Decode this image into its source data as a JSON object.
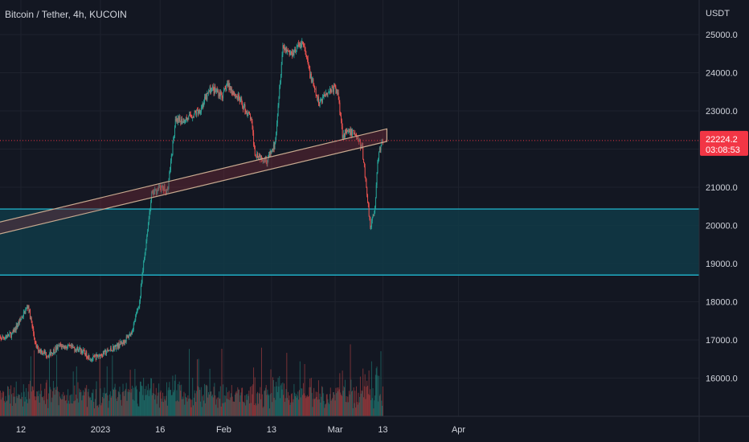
{
  "chart_data": {
    "type": "candlestick",
    "title": "Bitcoin / Tether, 4h, KUCOIN",
    "currency_label": "USDT",
    "ylim": [
      15400,
      26000
    ],
    "y_ticks": [
      "16000.0",
      "17000.0",
      "18000.0",
      "19000.0",
      "20000.0",
      "21000.0",
      "22000.0",
      "23000.0",
      "24000.0",
      "25000.0"
    ],
    "x_ticks": [
      {
        "label": "12",
        "date": "2022-12-12"
      },
      {
        "label": "2023",
        "date": "2023-01-01"
      },
      {
        "label": "16",
        "date": "2023-01-16"
      },
      {
        "label": "Feb",
        "date": "2023-02-01"
      },
      {
        "label": "13",
        "date": "2023-02-13"
      },
      {
        "label": "Mar",
        "date": "2023-03-01"
      },
      {
        "label": "13",
        "date": "2023-03-13"
      },
      {
        "label": "Apr",
        "date": "2023-04-01"
      }
    ],
    "price_path": [
      [
        "2022-12-06",
        17000
      ],
      [
        "2022-12-10",
        17150
      ],
      [
        "2022-12-14",
        17900
      ],
      [
        "2022-12-16",
        16800
      ],
      [
        "2022-12-19",
        16600
      ],
      [
        "2022-12-22",
        16850
      ],
      [
        "2022-12-27",
        16750
      ],
      [
        "2022-12-30",
        16500
      ],
      [
        "2023-01-03",
        16700
      ],
      [
        "2023-01-07",
        16950
      ],
      [
        "2023-01-09",
        17200
      ],
      [
        "2023-01-11",
        18000
      ],
      [
        "2023-01-12",
        19000
      ],
      [
        "2023-01-14",
        20800
      ],
      [
        "2023-01-16",
        21000
      ],
      [
        "2023-01-18",
        20900
      ],
      [
        "2023-01-20",
        22700
      ],
      [
        "2023-01-23",
        22800
      ],
      [
        "2023-01-26",
        23000
      ],
      [
        "2023-01-29",
        23600
      ],
      [
        "2023-02-01",
        23400
      ],
      [
        "2023-02-02",
        23700
      ],
      [
        "2023-02-05",
        23300
      ],
      [
        "2023-02-08",
        22800
      ],
      [
        "2023-02-09",
        21900
      ],
      [
        "2023-02-12",
        21700
      ],
      [
        "2023-02-14",
        22100
      ],
      [
        "2023-02-16",
        24700
      ],
      [
        "2023-02-18",
        24500
      ],
      [
        "2023-02-21",
        24800
      ],
      [
        "2023-02-23",
        23900
      ],
      [
        "2023-02-25",
        23200
      ],
      [
        "2023-02-27",
        23500
      ],
      [
        "2023-03-01",
        23600
      ],
      [
        "2023-03-02",
        23400
      ],
      [
        "2023-03-03",
        22400
      ],
      [
        "2023-03-06",
        22450
      ],
      [
        "2023-03-08",
        22000
      ],
      [
        "2023-03-09",
        21000
      ],
      [
        "2023-03-10",
        20000
      ],
      [
        "2023-03-11",
        20300
      ],
      [
        "2023-03-12",
        21800
      ],
      [
        "2023-03-13",
        22224.2
      ]
    ],
    "support_zone": {
      "upper": 20430,
      "lower": 18700
    },
    "trend_channel": [
      {
        "date": "2022-12-06",
        "upper": 20070,
        "lower": 19760
      },
      {
        "date": "2023-03-14",
        "upper": 22530,
        "lower": 22200
      }
    ],
    "last_price": {
      "value": "22224.2",
      "countdown": "03:08:53"
    },
    "colors": {
      "up": "#26a69a",
      "down": "#ef5350",
      "background": "#131722",
      "zone_fill": "#113a47",
      "zone_line": "#22c7e0",
      "channel_line": "#c8aa90",
      "last_price": "#f23645"
    },
    "grid": true
  }
}
